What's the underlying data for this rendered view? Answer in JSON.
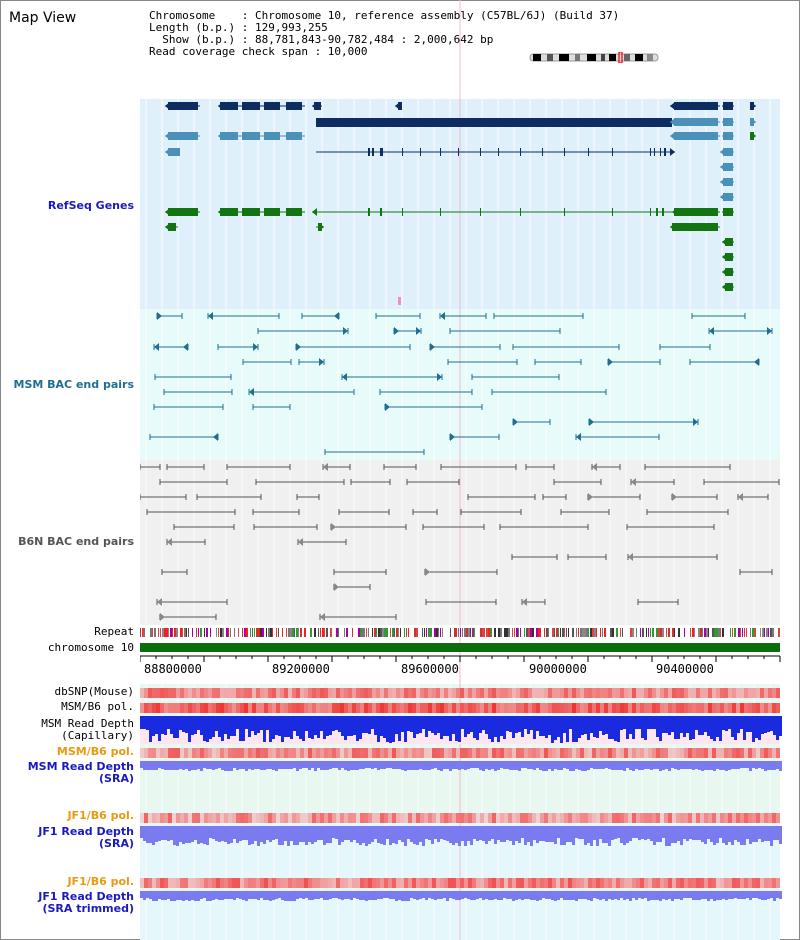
{
  "title": "Map View",
  "info": {
    "line1": "Chromosome    : Chromosome 10, reference assembly (C57BL/6J) (Build 37)",
    "line2": "Length (b.p.) : 129,993,255",
    "line3": "  Show (b.p.) : 88,781,843-90,782,484 : 2,000,642 bp",
    "line4": "Read coverage check span : 10,000"
  },
  "tracks": {
    "refseq": "RefSeq Genes",
    "msm_bac": "MSM BAC end pairs",
    "b6n_bac": "B6N BAC end pairs",
    "repeat": "Repeat",
    "chromosome": "chromosome 10",
    "dbsnp": "dbSNP(Mouse)",
    "msm_b6_pol_1": "MSM/B6 pol.",
    "msm_read_depth_cap_1": "MSM Read Depth",
    "msm_read_depth_cap_2": "(Capillary)",
    "msm_b6_pol_2": "MSM/B6 pol.",
    "msm_read_depth_sra_1": "MSM Read Depth",
    "msm_read_depth_sra_2": "(SRA)",
    "jf1_b6_pol_1": "JF1/B6 pol.",
    "jf1_read_depth_1": "JF1 Read Depth",
    "jf1_read_depth_2": "(SRA)",
    "jf1_b6_pol_2": "JF1/B6 pol.",
    "jf1_read_depth_trim_1": "JF1 Read Depth",
    "jf1_read_depth_trim_2": "(SRA trimmed)"
  },
  "axis": {
    "ticks": [
      "88800000",
      "89200000",
      "89600000",
      "90000000",
      "90400000"
    ]
  },
  "colors": {
    "refseq_bg": "#dff0fb",
    "msm_bg": "#e8fbfb",
    "b6n_bg": "#f0f0f0",
    "gene_navy": "#0d2c62",
    "gene_blue": "#4a90b8",
    "gene_green": "#127512",
    "bac_teal": "#1f6f8f",
    "bac_grey": "#555555",
    "depth_blue": "#1a2bdf",
    "depth_light": "#7b7bf0",
    "label_blue": "#1a1ac0",
    "label_orange": "#e89a10"
  }
}
